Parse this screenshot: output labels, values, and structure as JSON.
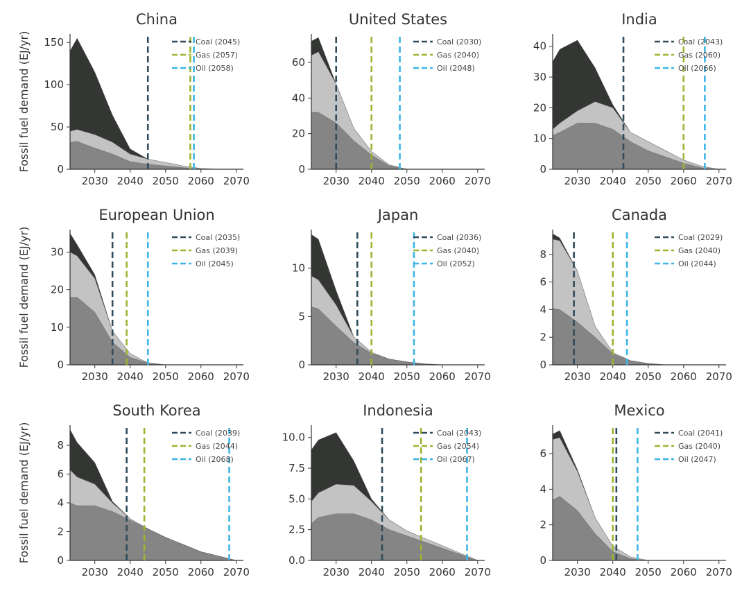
{
  "ylabel": "Fossil fuel demand (EJ/yr)",
  "colors": {
    "coal_area": "#343634",
    "gas_area": "#c3c3c3",
    "oil_area": "#858585",
    "coal_line": "#2f4b5c",
    "gas_line": "#9bb530",
    "oil_line": "#3bb5e6"
  },
  "chart_data": [
    {
      "type": "area",
      "title": "China",
      "xlim": [
        2023,
        2072
      ],
      "ylim": [
        0,
        160
      ],
      "yticks": [
        "0",
        "50",
        "100",
        "150"
      ],
      "xticks": [
        "2030",
        "2040",
        "2050",
        "2060",
        "2070"
      ],
      "x": [
        2023,
        2025,
        2030,
        2035,
        2040,
        2045,
        2050,
        2055,
        2060,
        2065,
        2070
      ],
      "series": [
        {
          "name": "Oil",
          "values": [
            32,
            33,
            25,
            18,
            9,
            6,
            4,
            2,
            0.5,
            0,
            0
          ]
        },
        {
          "name": "Gas",
          "values": [
            13,
            14,
            16,
            14,
            9,
            6,
            4,
            2,
            0.5,
            0,
            0
          ]
        },
        {
          "name": "Coal",
          "values": [
            95,
            108,
            74,
            32,
            6,
            0,
            0,
            0,
            0,
            0,
            0
          ]
        }
      ],
      "phaseout": {
        "Coal": 2045,
        "Gas": 2057,
        "Oil": 2058
      },
      "legend": [
        "Coal (2045)",
        "Gas (2057)",
        "Oil (2058)"
      ]
    },
    {
      "type": "area",
      "title": "United States",
      "xlim": [
        2023,
        2072
      ],
      "ylim": [
        0,
        76
      ],
      "yticks": [
        "0",
        "20",
        "40",
        "60"
      ],
      "xticks": [
        "2030",
        "2040",
        "2050",
        "2060",
        "2070"
      ],
      "x": [
        2023,
        2025,
        2030,
        2035,
        2040,
        2045,
        2050,
        2055,
        2060,
        2065,
        2070
      ],
      "series": [
        {
          "name": "Oil",
          "values": [
            32,
            32,
            26,
            16,
            8,
            2,
            0,
            0,
            0,
            0,
            0
          ]
        },
        {
          "name": "Gas",
          "values": [
            32,
            34,
            22,
            7,
            2,
            0.5,
            0,
            0,
            0,
            0,
            0
          ]
        },
        {
          "name": "Coal",
          "values": [
            8,
            8,
            0,
            0,
            0,
            0,
            0,
            0,
            0,
            0,
            0
          ]
        }
      ],
      "phaseout": {
        "Coal": 2030,
        "Gas": 2040,
        "Oil": 2048
      },
      "legend": [
        "Coal (2030)",
        "Gas (2040)",
        "Oil (2048)"
      ]
    },
    {
      "type": "area",
      "title": "India",
      "xlim": [
        2023,
        2072
      ],
      "ylim": [
        0,
        44
      ],
      "yticks": [
        "0",
        "10",
        "20",
        "30",
        "40"
      ],
      "xticks": [
        "2030",
        "2040",
        "2050",
        "2060",
        "2070"
      ],
      "x": [
        2023,
        2025,
        2030,
        2035,
        2040,
        2045,
        2050,
        2055,
        2060,
        2065,
        2070
      ],
      "series": [
        {
          "name": "Oil",
          "values": [
            11,
            12,
            15,
            15,
            13,
            9,
            6,
            4,
            2,
            0.5,
            0
          ]
        },
        {
          "name": "Gas",
          "values": [
            2,
            3,
            4,
            7,
            7,
            3,
            3,
            2,
            1,
            0.5,
            0
          ]
        },
        {
          "name": "Coal",
          "values": [
            22,
            24,
            23,
            11,
            1,
            0,
            0,
            0,
            0,
            0,
            0
          ]
        }
      ],
      "phaseout": {
        "Coal": 2043,
        "Gas": 2060,
        "Oil": 2066
      },
      "legend": [
        "Coal (2043)",
        "Gas (2060)",
        "Oil (2066)"
      ]
    },
    {
      "type": "area",
      "title": "European Union",
      "xlim": [
        2023,
        2072
      ],
      "ylim": [
        0,
        36
      ],
      "yticks": [
        "0",
        "10",
        "20",
        "30"
      ],
      "xticks": [
        "2030",
        "2040",
        "2050",
        "2060",
        "2070"
      ],
      "x": [
        2023,
        2025,
        2030,
        2035,
        2040,
        2045,
        2050,
        2055,
        2060,
        2065,
        2070
      ],
      "series": [
        {
          "name": "Oil",
          "values": [
            18,
            18,
            14,
            6,
            2,
            0.5,
            0,
            0,
            0,
            0,
            0
          ]
        },
        {
          "name": "Gas",
          "values": [
            12,
            11,
            9,
            3,
            1,
            0,
            0,
            0,
            0,
            0,
            0
          ]
        },
        {
          "name": "Coal",
          "values": [
            5,
            3,
            1,
            0,
            0,
            0,
            0,
            0,
            0,
            0,
            0
          ]
        }
      ],
      "phaseout": {
        "Coal": 2035,
        "Gas": 2039,
        "Oil": 2045
      },
      "legend": [
        "Coal (2035)",
        "Gas (2039)",
        "Oil (2045)"
      ]
    },
    {
      "type": "area",
      "title": "Japan",
      "xlim": [
        2023,
        2072
      ],
      "ylim": [
        0,
        14
      ],
      "yticks": [
        "0",
        "5",
        "10"
      ],
      "xticks": [
        "2030",
        "2040",
        "2050",
        "2060",
        "2070"
      ],
      "x": [
        2023,
        2025,
        2030,
        2035,
        2040,
        2045,
        2050,
        2055,
        2060,
        2065,
        2070
      ],
      "series": [
        {
          "name": "Oil",
          "values": [
            6,
            5.8,
            4,
            2.3,
            1.2,
            0.6,
            0.3,
            0.1,
            0,
            0,
            0
          ]
        },
        {
          "name": "Gas",
          "values": [
            3.2,
            3,
            2.2,
            0.6,
            0.1,
            0,
            0,
            0,
            0,
            0,
            0
          ]
        },
        {
          "name": "Coal",
          "values": [
            4.3,
            4.2,
            1.5,
            0,
            0,
            0,
            0,
            0,
            0,
            0,
            0
          ]
        }
      ],
      "phaseout": {
        "Coal": 2036,
        "Gas": 2040,
        "Oil": 2052
      },
      "legend": [
        "Coal (2036)",
        "Gas (2040)",
        "Oil (2052)"
      ]
    },
    {
      "type": "area",
      "title": "Canada",
      "xlim": [
        2023,
        2072
      ],
      "ylim": [
        0,
        9.8
      ],
      "yticks": [
        "0",
        "2",
        "4",
        "6",
        "8"
      ],
      "xticks": [
        "2030",
        "2040",
        "2050",
        "2060",
        "2070"
      ],
      "x": [
        2023,
        2025,
        2030,
        2035,
        2040,
        2045,
        2050,
        2055,
        2060,
        2065,
        2070
      ],
      "series": [
        {
          "name": "Oil",
          "values": [
            4.1,
            4,
            3.1,
            2,
            0.8,
            0.3,
            0.1,
            0,
            0,
            0,
            0
          ]
        },
        {
          "name": "Gas",
          "values": [
            5,
            5,
            3.7,
            0.8,
            0.1,
            0,
            0,
            0,
            0,
            0,
            0
          ]
        },
        {
          "name": "Coal",
          "values": [
            0.4,
            0.2,
            0,
            0,
            0,
            0,
            0,
            0,
            0,
            0,
            0
          ]
        }
      ],
      "phaseout": {
        "Coal": 2029,
        "Gas": 2040,
        "Oil": 2044
      },
      "legend": [
        "Coal (2029)",
        "Gas (2040)",
        "Oil (2044)"
      ]
    },
    {
      "type": "area",
      "title": "South Korea",
      "xlim": [
        2023,
        2072
      ],
      "ylim": [
        0,
        9.4
      ],
      "yticks": [
        "0",
        "2",
        "4",
        "6",
        "8"
      ],
      "xticks": [
        "2030",
        "2040",
        "2050",
        "2060",
        "2070"
      ],
      "x": [
        2023,
        2025,
        2030,
        2035,
        2040,
        2045,
        2050,
        2055,
        2060,
        2065,
        2070
      ],
      "series": [
        {
          "name": "Oil",
          "values": [
            4,
            3.8,
            3.8,
            3.4,
            2.8,
            2.2,
            1.6,
            1.1,
            0.6,
            0.3,
            0
          ]
        },
        {
          "name": "Gas",
          "values": [
            2.3,
            2,
            1.5,
            0.6,
            0.1,
            0,
            0,
            0,
            0,
            0,
            0
          ]
        },
        {
          "name": "Coal",
          "values": [
            2.8,
            2.4,
            1.5,
            0.1,
            0,
            0,
            0,
            0,
            0,
            0,
            0
          ]
        }
      ],
      "phaseout": {
        "Coal": 2039,
        "Gas": 2044,
        "Oil": 2068
      },
      "legend": [
        "Coal (2039)",
        "Gas (2044)",
        "Oil (2068)"
      ]
    },
    {
      "type": "area",
      "title": "Indonesia",
      "xlim": [
        2023,
        2072
      ],
      "ylim": [
        0,
        11
      ],
      "yticks": [
        "0.0",
        "2.5",
        "5.0",
        "7.5",
        "10.0"
      ],
      "xticks": [
        "2030",
        "2040",
        "2050",
        "2060",
        "2070"
      ],
      "x": [
        2023,
        2025,
        2030,
        2035,
        2040,
        2045,
        2050,
        2055,
        2060,
        2065,
        2070
      ],
      "series": [
        {
          "name": "Oil",
          "values": [
            3,
            3.5,
            3.8,
            3.8,
            3.3,
            2.5,
            2,
            1.5,
            1,
            0.5,
            0
          ]
        },
        {
          "name": "Gas",
          "values": [
            1.8,
            2,
            2.4,
            2.3,
            1.5,
            0.8,
            0.4,
            0.3,
            0.2,
            0.1,
            0
          ]
        },
        {
          "name": "Coal",
          "values": [
            4.2,
            4.3,
            4.2,
            2,
            0.2,
            0,
            0,
            0,
            0,
            0,
            0
          ]
        }
      ],
      "phaseout": {
        "Coal": 2043,
        "Gas": 2054,
        "Oil": 2067
      },
      "legend": [
        "Coal (2043)",
        "Gas (2054)",
        "Oil (2067)"
      ]
    },
    {
      "type": "area",
      "title": "Mexico",
      "xlim": [
        2023,
        2072
      ],
      "ylim": [
        0,
        7.6
      ],
      "yticks": [
        "0",
        "2",
        "4",
        "6"
      ],
      "xticks": [
        "2030",
        "2040",
        "2050",
        "2060",
        "2070"
      ],
      "x": [
        2023,
        2025,
        2030,
        2035,
        2040,
        2045,
        2050,
        2055,
        2060,
        2065,
        2070
      ],
      "series": [
        {
          "name": "Oil",
          "values": [
            3.4,
            3.6,
            2.8,
            1.5,
            0.5,
            0.1,
            0,
            0,
            0,
            0,
            0
          ]
        },
        {
          "name": "Gas",
          "values": [
            3.4,
            3.3,
            2.2,
            0.9,
            0.3,
            0.1,
            0,
            0,
            0,
            0,
            0
          ]
        },
        {
          "name": "Coal",
          "values": [
            0.3,
            0.4,
            0.1,
            0,
            0,
            0,
            0,
            0,
            0,
            0,
            0
          ]
        }
      ],
      "phaseout": {
        "Coal": 2041,
        "Gas": 2040,
        "Oil": 2047
      },
      "legend": [
        "Coal (2041)",
        "Gas (2040)",
        "Oil (2047)"
      ]
    }
  ]
}
